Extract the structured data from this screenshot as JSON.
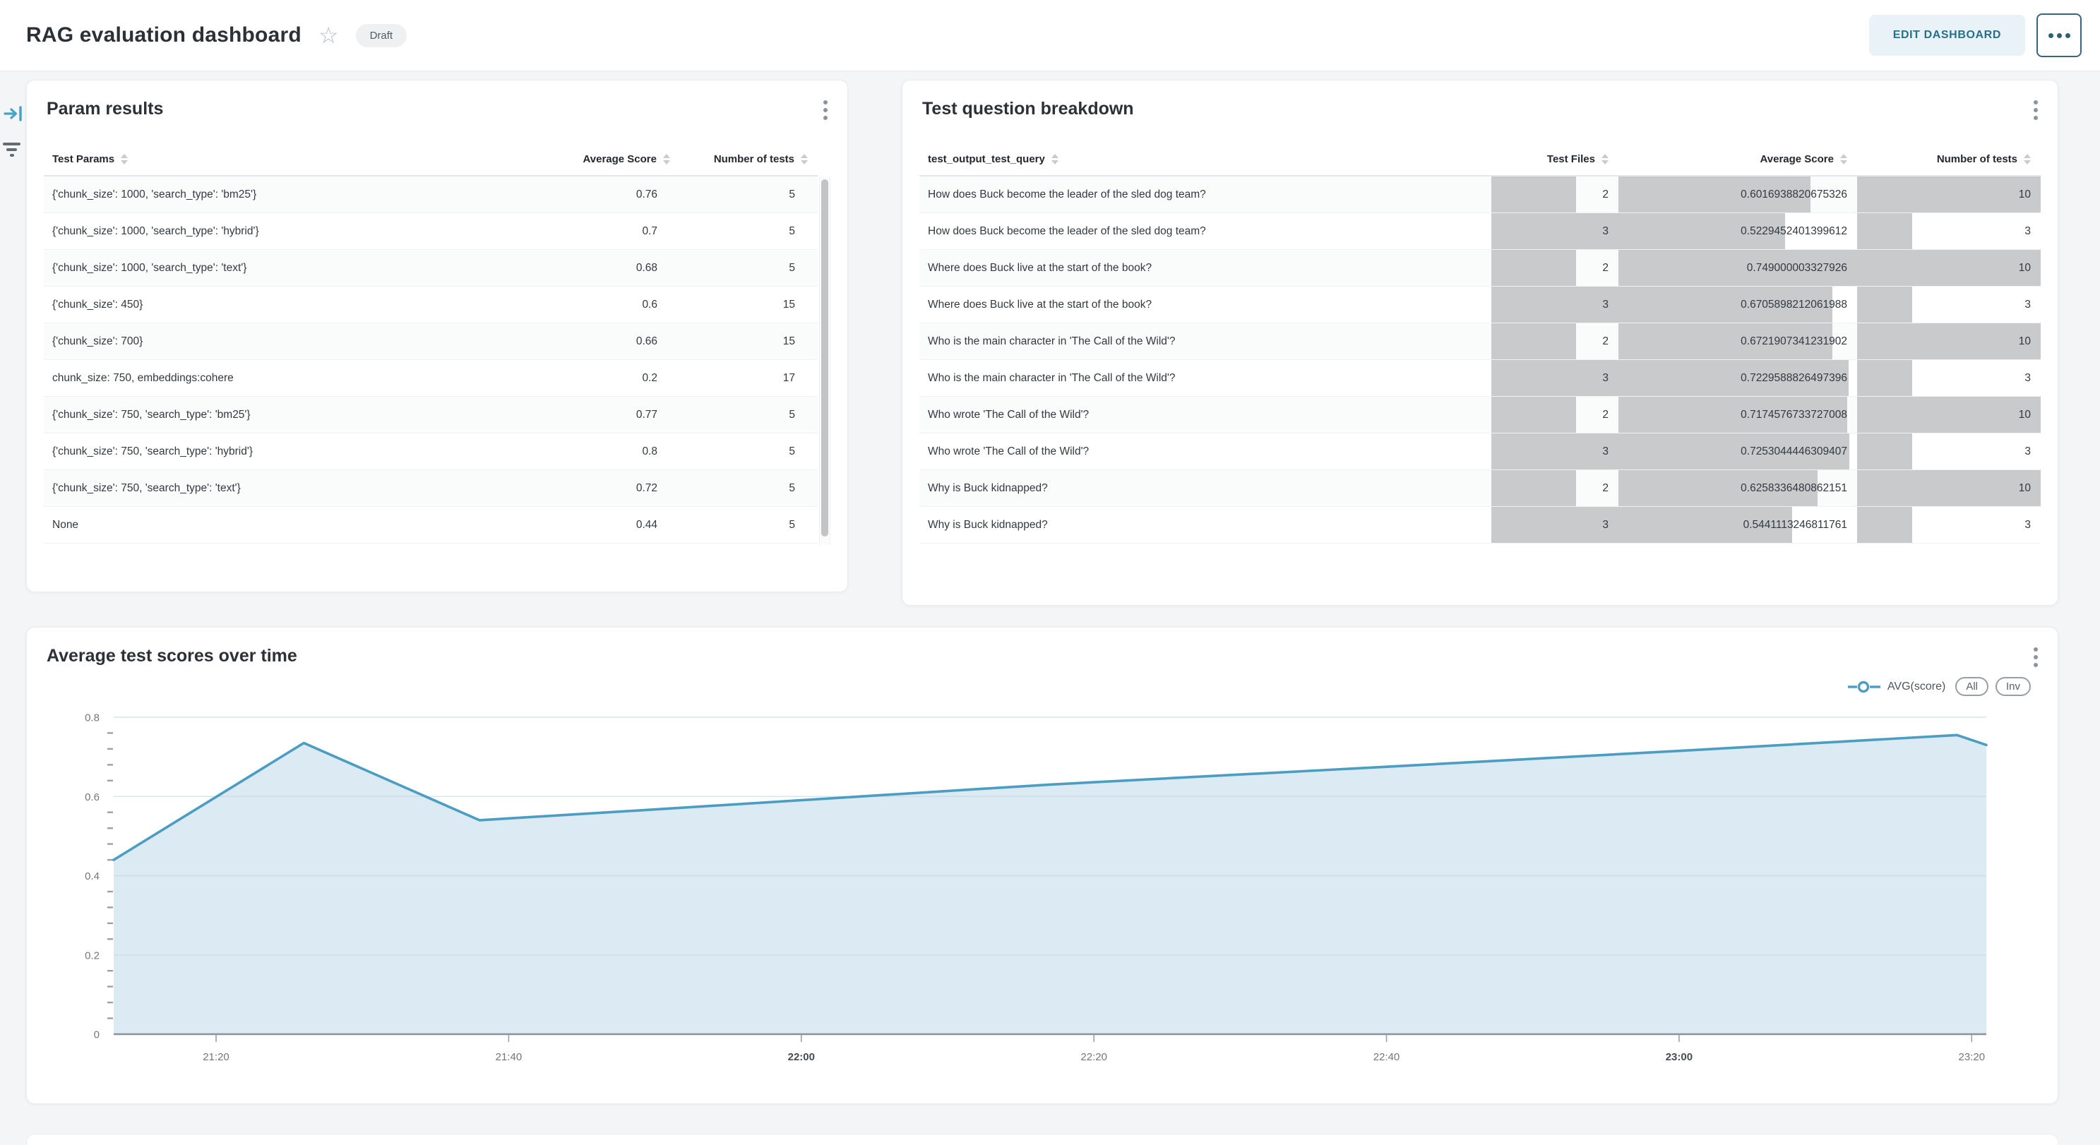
{
  "header": {
    "title": "RAG evaluation dashboard",
    "badge": "Draft",
    "edit_button": "EDIT DASHBOARD"
  },
  "param_results": {
    "title": "Param results",
    "columns": [
      "Test Params",
      "Average Score",
      "Number of tests"
    ],
    "rows": [
      [
        "{'chunk_size': 1000, 'search_type': 'bm25'}",
        "0.76",
        "5"
      ],
      [
        "{'chunk_size': 1000, 'search_type': 'hybrid'}",
        "0.7",
        "5"
      ],
      [
        "{'chunk_size': 1000, 'search_type': 'text'}",
        "0.68",
        "5"
      ],
      [
        "{'chunk_size': 450}",
        "0.6",
        "15"
      ],
      [
        "{'chunk_size': 700}",
        "0.66",
        "15"
      ],
      [
        "chunk_size: 750, embeddings:cohere",
        "0.2",
        "17"
      ],
      [
        "{'chunk_size': 750, 'search_type': 'bm25'}",
        "0.77",
        "5"
      ],
      [
        "{'chunk_size': 750, 'search_type': 'hybrid'}",
        "0.8",
        "5"
      ],
      [
        "{'chunk_size': 750, 'search_type': 'text'}",
        "0.72",
        "5"
      ],
      [
        "None",
        "0.44",
        "5"
      ]
    ]
  },
  "question_breakdown": {
    "title": "Test question breakdown",
    "columns": [
      "test_output_test_query",
      "Test Files",
      "Average Score",
      "Number of tests"
    ],
    "minibar_max": {
      "test_files": 3,
      "avg_score": 0.749000003327926,
      "num_tests": 10
    },
    "rows": [
      {
        "query": "How does Buck become the leader of the sled dog team?",
        "test_files": "2",
        "avg_score": "0.6016938820675326",
        "num_tests": "10"
      },
      {
        "query": "How does Buck become the leader of the sled dog team?",
        "test_files": "3",
        "avg_score": "0.5229452401399612",
        "num_tests": "3"
      },
      {
        "query": "Where does Buck live at the start of the book?",
        "test_files": "2",
        "avg_score": "0.749000003327926",
        "num_tests": "10"
      },
      {
        "query": "Where does Buck live at the start of the book?",
        "test_files": "3",
        "avg_score": "0.6705898212061988",
        "num_tests": "3"
      },
      {
        "query": "Who is the main character in 'The Call of the Wild'?",
        "test_files": "2",
        "avg_score": "0.6721907341231902",
        "num_tests": "10"
      },
      {
        "query": "Who is the main character in 'The Call of the Wild'?",
        "test_files": "3",
        "avg_score": "0.7229588826497396",
        "num_tests": "3"
      },
      {
        "query": "Who wrote 'The Call of the Wild'?",
        "test_files": "2",
        "avg_score": "0.7174576733727008",
        "num_tests": "10"
      },
      {
        "query": "Who wrote 'The Call of the Wild'?",
        "test_files": "3",
        "avg_score": "0.7253044446309407",
        "num_tests": "3"
      },
      {
        "query": "Why is Buck kidnapped?",
        "test_files": "2",
        "avg_score": "0.6258336480862151",
        "num_tests": "10"
      },
      {
        "query": "Why is Buck kidnapped?",
        "test_files": "3",
        "avg_score": "0.5441113246811761",
        "num_tests": "3"
      }
    ]
  },
  "chart_card": {
    "title": "Average test scores over time",
    "legend": {
      "series_label": "AVG(score)",
      "pill_all": "All",
      "pill_inv": "Inv"
    }
  },
  "chart_data": {
    "type": "area",
    "title": "Average test scores over time",
    "xlabel": "",
    "ylabel": "",
    "ylim": [
      0,
      0.8
    ],
    "y_ticks": [
      0,
      0.2,
      0.4,
      0.6,
      0.8
    ],
    "y_minor_step": 0.04,
    "grid": true,
    "legend_position": "top-right",
    "x_domain": [
      "21:13",
      "23:21"
    ],
    "x_ticks": [
      {
        "label": "21:20",
        "bold": false
      },
      {
        "label": "21:40",
        "bold": false
      },
      {
        "label": "22:00",
        "bold": true
      },
      {
        "label": "22:20",
        "bold": false
      },
      {
        "label": "22:40",
        "bold": false
      },
      {
        "label": "23:00",
        "bold": true
      },
      {
        "label": "23:20",
        "bold": false
      }
    ],
    "series": [
      {
        "name": "AVG(score)",
        "points": [
          {
            "t": "21:13",
            "v": 0.44
          },
          {
            "t": "21:26",
            "v": 0.735
          },
          {
            "t": "21:38",
            "v": 0.54
          },
          {
            "t": "21:49",
            "v": 0.565
          },
          {
            "t": "22:04",
            "v": 0.6
          },
          {
            "t": "22:17",
            "v": 0.63
          },
          {
            "t": "22:40",
            "v": 0.675
          },
          {
            "t": "23:00",
            "v": 0.715
          },
          {
            "t": "23:19",
            "v": 0.755
          },
          {
            "t": "23:21",
            "v": 0.73
          }
        ]
      }
    ],
    "colors": {
      "line": "#4b9dc1",
      "fill": "#dbeaf3",
      "grid": "#c6d6e2",
      "axis": "#8a919b",
      "tick_label": "#71777e",
      "tick_label_bold": "#454c53"
    }
  }
}
